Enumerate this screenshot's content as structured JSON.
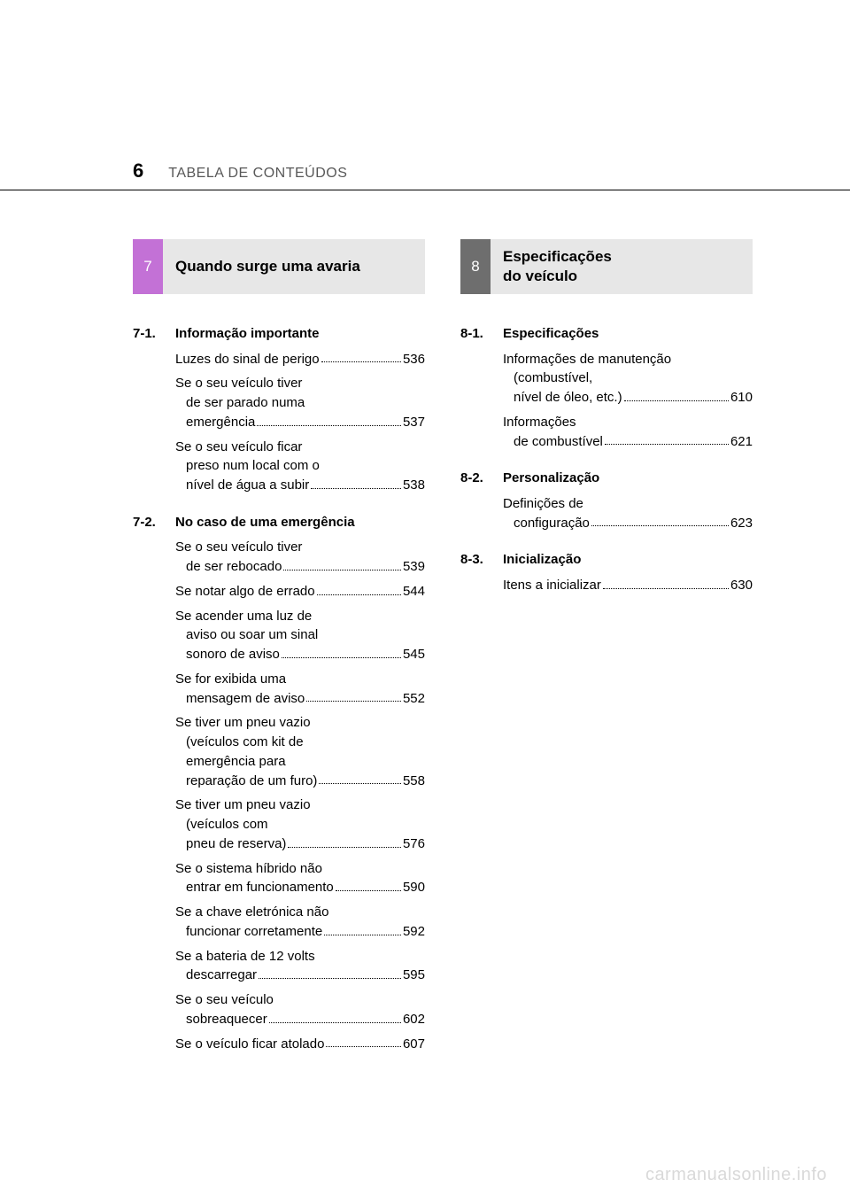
{
  "page_number": "6",
  "header_title": "TABELA DE CONTEÚDOS",
  "watermark": "carmanualsonline.info",
  "sections": {
    "s7": {
      "chip": "7",
      "chip_bg": "#c371d6",
      "title": "Quando surge uma avaria",
      "groups": [
        {
          "label": "7-1.",
          "heading": "Informação importante",
          "items": [
            {
              "lines": [
                "Luzes do sinal de perigo"
              ],
              "page": "536"
            },
            {
              "lines": [
                "Se o seu veículo tiver",
                "de ser parado numa",
                "emergência"
              ],
              "page": "537"
            },
            {
              "lines": [
                "Se o seu veículo ficar",
                "preso num local com o",
                "nível de água a subir"
              ],
              "page": "538"
            }
          ]
        },
        {
          "label": "7-2.",
          "heading": "No caso de uma emergência",
          "items": [
            {
              "lines": [
                "Se o seu veículo tiver",
                "de ser rebocado"
              ],
              "page": "539"
            },
            {
              "lines": [
                "Se notar algo de errado"
              ],
              "page": "544"
            },
            {
              "lines": [
                "Se acender uma luz de",
                "aviso ou soar um sinal",
                "sonoro de aviso"
              ],
              "page": "545"
            },
            {
              "lines": [
                "Se for exibida uma",
                "mensagem de aviso"
              ],
              "page": "552"
            },
            {
              "lines": [
                "Se tiver um pneu vazio",
                "(veículos com kit de",
                "emergência para",
                "reparação de um furo)"
              ],
              "page": "558"
            },
            {
              "lines": [
                "Se tiver um pneu vazio",
                "(veículos com",
                "pneu de reserva)"
              ],
              "page": "576"
            },
            {
              "lines": [
                "Se o sistema híbrido não",
                "entrar em funcionamento"
              ],
              "page": "590"
            },
            {
              "lines": [
                "Se a chave eletrónica não",
                "funcionar corretamente"
              ],
              "page": "592"
            },
            {
              "lines": [
                "Se a bateria de 12 volts",
                "descarregar"
              ],
              "page": "595"
            },
            {
              "lines": [
                "Se o seu veículo",
                "sobreaquecer"
              ],
              "page": "602"
            },
            {
              "lines": [
                "Se o veículo ficar atolado"
              ],
              "page": "607"
            }
          ]
        }
      ]
    },
    "s8": {
      "chip": "8",
      "chip_bg": "#6e6e6e",
      "title": "Especificações\ndo veículo",
      "groups": [
        {
          "label": "8-1.",
          "heading": "Especificações",
          "items": [
            {
              "lines": [
                "Informações de manutenção",
                "(combustível,",
                "nível de óleo, etc.)"
              ],
              "page": "610"
            },
            {
              "lines": [
                "Informações",
                "de combustível"
              ],
              "page": "621"
            }
          ]
        },
        {
          "label": "8-2.",
          "heading": "Personalização",
          "items": [
            {
              "lines": [
                "Definições de",
                "configuração"
              ],
              "page": "623"
            }
          ]
        },
        {
          "label": "8-3.",
          "heading": "Inicialização",
          "items": [
            {
              "lines": [
                "Itens a inicializar"
              ],
              "page": "630"
            }
          ]
        }
      ]
    }
  }
}
